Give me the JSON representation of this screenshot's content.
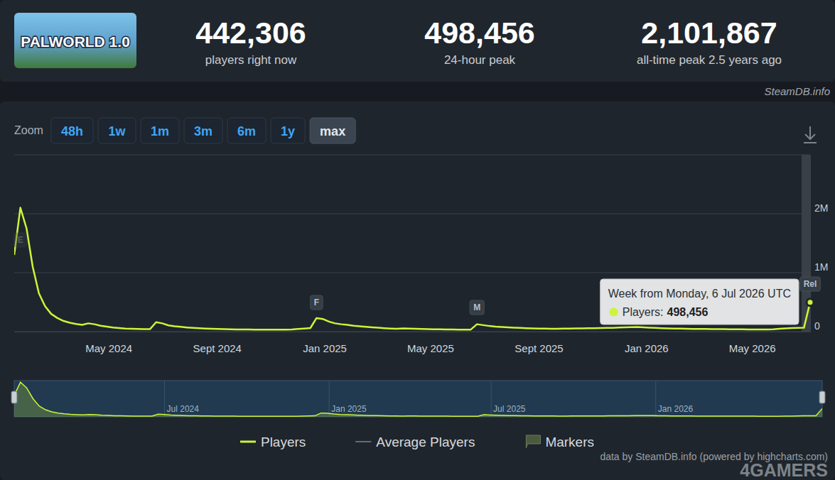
{
  "page": {
    "logo_text": "PALWORLD 1.0",
    "watermark": "SteamDB.info",
    "stats": [
      {
        "value": "442,306",
        "label": "players right now"
      },
      {
        "value": "498,456",
        "label": "24-hour peak"
      },
      {
        "value": "2,101,867",
        "label": "all-time peak 2.5 years ago"
      }
    ],
    "zoom_label": "Zoom",
    "zoom_buttons": [
      "48h",
      "1w",
      "1m",
      "3m",
      "6m",
      "1y",
      "max"
    ],
    "zoom_selected": "max",
    "credit": "data by SteamDB.info (powered by highcharts.com)",
    "site_watermark": "4GAMERS"
  },
  "chart_data": {
    "type": "line",
    "x": [
      "2024-01-15",
      "2024-01-22",
      "2024-01-29",
      "2024-02-05",
      "2024-02-12",
      "2024-02-19",
      "2024-02-26",
      "2024-03-04",
      "2024-03-11",
      "2024-03-18",
      "2024-03-25",
      "2024-04-01",
      "2024-04-08",
      "2024-04-15",
      "2024-04-22",
      "2024-04-29",
      "2024-05-06",
      "2024-05-13",
      "2024-05-20",
      "2024-05-27",
      "2024-06-03",
      "2024-06-10",
      "2024-06-17",
      "2024-06-24",
      "2024-07-01",
      "2024-07-08",
      "2024-07-15",
      "2024-07-22",
      "2024-07-29",
      "2024-08-05",
      "2024-08-12",
      "2024-08-19",
      "2024-08-26",
      "2024-09-02",
      "2024-09-09",
      "2024-09-16",
      "2024-09-23",
      "2024-09-30",
      "2024-10-07",
      "2024-10-14",
      "2024-10-21",
      "2024-10-28",
      "2024-11-04",
      "2024-11-11",
      "2024-11-18",
      "2024-11-25",
      "2024-12-02",
      "2024-12-09",
      "2024-12-16",
      "2024-12-23",
      "2024-12-30",
      "2025-01-06",
      "2025-01-13",
      "2025-01-20",
      "2025-01-27",
      "2025-02-03",
      "2025-02-10",
      "2025-02-17",
      "2025-02-24",
      "2025-03-03",
      "2025-03-10",
      "2025-03-17",
      "2025-03-24",
      "2025-03-31",
      "2025-04-07",
      "2025-04-14",
      "2025-04-21",
      "2025-04-28",
      "2025-05-05",
      "2025-05-12",
      "2025-05-19",
      "2025-05-26",
      "2025-06-02",
      "2025-06-09",
      "2025-06-16",
      "2025-06-23",
      "2025-06-30",
      "2025-07-07",
      "2025-07-14",
      "2025-07-21",
      "2025-07-28",
      "2025-08-04",
      "2025-08-11",
      "2025-08-18",
      "2025-08-25",
      "2025-09-01",
      "2025-09-08",
      "2025-09-15",
      "2025-09-22",
      "2025-09-29",
      "2025-10-06",
      "2025-10-13",
      "2025-10-20",
      "2025-10-27",
      "2025-11-03",
      "2025-11-10",
      "2025-11-17",
      "2025-11-24",
      "2025-12-01",
      "2025-12-08",
      "2025-12-15",
      "2025-12-22",
      "2025-12-29",
      "2026-01-05",
      "2026-01-12",
      "2026-01-19",
      "2026-01-26",
      "2026-02-02",
      "2026-02-09",
      "2026-02-16",
      "2026-02-23",
      "2026-03-02",
      "2026-03-09",
      "2026-03-16",
      "2026-03-23",
      "2026-03-30",
      "2026-04-06",
      "2026-04-13",
      "2026-04-20",
      "2026-04-27",
      "2026-05-04",
      "2026-05-11",
      "2026-05-18",
      "2026-05-25",
      "2026-06-01",
      "2026-06-08",
      "2026-06-15",
      "2026-06-22",
      "2026-06-29",
      "2026-07-06"
    ],
    "series": [
      {
        "name": "Players",
        "color": "#cdf538",
        "values": [
          1300000,
          2101867,
          1750000,
          1100000,
          650000,
          430000,
          300000,
          230000,
          180000,
          150000,
          130000,
          115000,
          140000,
          125000,
          100000,
          85000,
          70000,
          60000,
          52000,
          47000,
          44000,
          42000,
          41000,
          160000,
          140000,
          105000,
          90000,
          80000,
          70000,
          62000,
          56000,
          52000,
          48000,
          44000,
          41000,
          39000,
          37000,
          36000,
          35000,
          34000,
          33000,
          33000,
          32000,
          32000,
          33000,
          36000,
          45000,
          52000,
          60000,
          230000,
          215000,
          170000,
          140000,
          125000,
          115000,
          100000,
          90000,
          80000,
          72000,
          65000,
          58000,
          52000,
          48000,
          55000,
          52000,
          48000,
          44000,
          42000,
          40000,
          38000,
          36000,
          35000,
          34000,
          33000,
          34000,
          125000,
          110000,
          95000,
          85000,
          78000,
          72000,
          66000,
          62000,
          58000,
          55000,
          52000,
          50000,
          48000,
          47000,
          50000,
          52000,
          54000,
          55000,
          56000,
          58000,
          60000,
          62000,
          64000,
          68000,
          72000,
          75000,
          78000,
          72000,
          66000,
          62000,
          58000,
          55000,
          52000,
          50000,
          48000,
          46000,
          45000,
          44000,
          43000,
          42000,
          41000,
          40000,
          39000,
          38000,
          37000,
          36000,
          35000,
          36000,
          40000,
          48000,
          55000,
          60000,
          62000,
          65000,
          498456
        ]
      }
    ],
    "xlim": [
      "2024-01-15",
      "2026-07-06"
    ],
    "xticks": [
      {
        "value": "2024-05-01",
        "label": "May 2024"
      },
      {
        "value": "2024-09-01",
        "label": "Sept 2024"
      },
      {
        "value": "2025-01-01",
        "label": "Jan 2025"
      },
      {
        "value": "2025-05-01",
        "label": "May 2025"
      },
      {
        "value": "2025-09-01",
        "label": "Sept 2025"
      },
      {
        "value": "2026-01-01",
        "label": "Jan 2026"
      },
      {
        "value": "2026-05-01",
        "label": "May 2026"
      }
    ],
    "ylim": [
      0,
      3000000
    ],
    "yticks": [
      0,
      {
        "value": 1000000,
        "label": "1M"
      },
      {
        "value": 2000000,
        "label": "2M"
      }
    ],
    "grid": true,
    "legend": "bottom",
    "other_legend_entries": [
      "Average Players",
      "Markers"
    ],
    "markers": [
      {
        "label": "E",
        "x": "2024-01-22"
      },
      {
        "label": "F",
        "x": "2024-12-23"
      },
      {
        "label": "M",
        "x": "2025-06-23"
      },
      {
        "label": "Rel",
        "x": "2026-07-06"
      }
    ],
    "tooltip": {
      "title": "Week from Monday, 6 Jul 2026 UTC",
      "x": "2026-07-06",
      "label": "Players:",
      "value_label": "498,456"
    },
    "navigator": {
      "xticks": [
        {
          "value": "2024-07-01",
          "label": "Jul 2024"
        },
        {
          "value": "2025-01-01",
          "label": "Jan 2025"
        },
        {
          "value": "2025-07-01",
          "label": "Jul 2025"
        },
        {
          "value": "2026-01-01",
          "label": "Jan 2026"
        }
      ],
      "ylim": [
        0,
        2200000
      ]
    }
  }
}
